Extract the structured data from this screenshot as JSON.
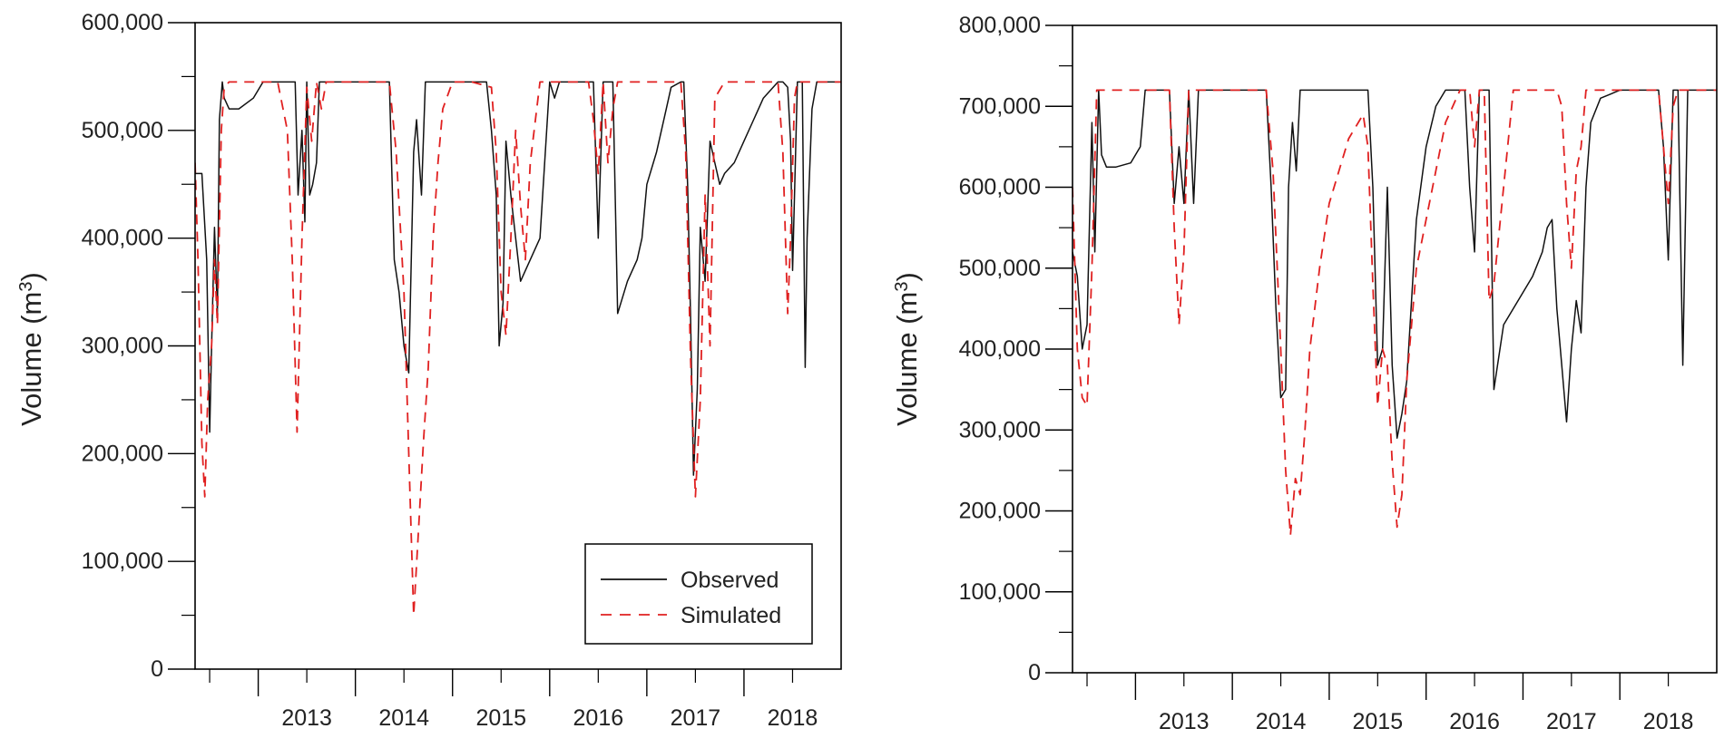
{
  "colors": {
    "observed": "#111111",
    "simulated": "#e02020",
    "axis": "#000000"
  },
  "legend": {
    "observed": "Observed",
    "simulated": "Simulated"
  },
  "chart_data": [
    {
      "type": "line",
      "title": "",
      "xlabel": "",
      "ylabel": "Volume (m3)",
      "ylabel_base": "Volume (m",
      "ylabel_sup": "3",
      "ylabel_close": ")",
      "xlim": [
        2012.35,
        2019.0
      ],
      "ylim": [
        0,
        600000
      ],
      "yticks": [
        0,
        100000,
        200000,
        300000,
        400000,
        500000,
        600000
      ],
      "ytick_labels": [
        "0",
        "100,000",
        "200,000",
        "300,000",
        "400,000",
        "500,000",
        "600,000"
      ],
      "xtick_positions": [
        2013,
        2014,
        2015,
        2016,
        2017,
        2018
      ],
      "xtick_labels": [
        "2013",
        "2014",
        "2015",
        "2016",
        "2017",
        "2018"
      ],
      "legend_position": "bottom-right",
      "series": [
        {
          "name": "Observed",
          "style": "solid",
          "x": [
            2012.35,
            2012.42,
            2012.47,
            2012.5,
            2012.52,
            2012.55,
            2012.58,
            2012.6,
            2012.63,
            2012.65,
            2012.7,
            2012.8,
            2012.95,
            2013.05,
            2013.2,
            2013.38,
            2013.41,
            2013.45,
            2013.48,
            2013.5,
            2013.53,
            2013.56,
            2013.6,
            2013.63,
            2013.67,
            2013.72,
            2013.8,
            2014.0,
            2014.2,
            2014.35,
            2014.4,
            2014.45,
            2014.5,
            2014.55,
            2014.6,
            2014.63,
            2014.68,
            2014.72,
            2014.75,
            2014.8,
            2014.85,
            2015.1,
            2015.35,
            2015.4,
            2015.45,
            2015.48,
            2015.52,
            2015.55,
            2015.6,
            2015.65,
            2015.7,
            2015.8,
            2015.9,
            2016.0,
            2016.05,
            2016.1,
            2016.2,
            2016.35,
            2016.4,
            2016.45,
            2016.5,
            2016.55,
            2016.6,
            2016.65,
            2016.7,
            2016.8,
            2016.9,
            2016.95,
            2017.0,
            2017.1,
            2017.2,
            2017.25,
            2017.35,
            2017.38,
            2017.42,
            2017.45,
            2017.48,
            2017.52,
            2017.55,
            2017.6,
            2017.65,
            2017.7,
            2017.75,
            2017.8,
            2017.9,
            2018.0,
            2018.1,
            2018.2,
            2018.35,
            2018.4,
            2018.45,
            2018.48,
            2018.5,
            2018.55,
            2018.6,
            2018.63,
            2018.65,
            2018.7,
            2018.75,
            2018.85,
            2019.0
          ],
          "y": [
            460000,
            460000,
            380000,
            220000,
            300000,
            410000,
            330000,
            510000,
            545000,
            530000,
            520000,
            520000,
            530000,
            545000,
            545000,
            545000,
            440000,
            500000,
            415000,
            545000,
            440000,
            450000,
            470000,
            545000,
            545000,
            545000,
            545000,
            545000,
            545000,
            545000,
            380000,
            350000,
            300000,
            275000,
            480000,
            510000,
            440000,
            545000,
            545000,
            545000,
            545000,
            545000,
            545000,
            500000,
            440000,
            300000,
            340000,
            490000,
            440000,
            400000,
            360000,
            380000,
            400000,
            545000,
            530000,
            545000,
            545000,
            545000,
            545000,
            545000,
            400000,
            545000,
            545000,
            545000,
            330000,
            360000,
            380000,
            400000,
            450000,
            480000,
            520000,
            540000,
            545000,
            545000,
            450000,
            330000,
            180000,
            260000,
            410000,
            360000,
            490000,
            470000,
            450000,
            460000,
            470000,
            490000,
            510000,
            530000,
            545000,
            545000,
            540000,
            490000,
            370000,
            545000,
            545000,
            280000,
            400000,
            520000,
            545000,
            545000,
            545000
          ]
        },
        {
          "name": "Simulated",
          "style": "dashed",
          "x": [
            2012.35,
            2012.38,
            2012.42,
            2012.45,
            2012.48,
            2012.52,
            2012.55,
            2012.58,
            2012.62,
            2012.65,
            2012.7,
            2012.8,
            2013.0,
            2013.2,
            2013.3,
            2013.35,
            2013.4,
            2013.45,
            2013.5,
            2013.55,
            2013.6,
            2013.65,
            2013.7,
            2013.8,
            2014.0,
            2014.2,
            2014.35,
            2014.42,
            2014.5,
            2014.55,
            2014.6,
            2014.65,
            2014.7,
            2014.75,
            2014.8,
            2014.85,
            2014.9,
            2015.0,
            2015.2,
            2015.4,
            2015.45,
            2015.5,
            2015.55,
            2015.6,
            2015.65,
            2015.7,
            2015.75,
            2015.8,
            2015.9,
            2016.1,
            2016.3,
            2016.4,
            2016.45,
            2016.5,
            2016.55,
            2016.6,
            2016.65,
            2016.7,
            2016.75,
            2016.8,
            2017.0,
            2017.2,
            2017.35,
            2017.4,
            2017.45,
            2017.5,
            2017.55,
            2017.6,
            2017.65,
            2017.7,
            2017.8,
            2018.0,
            2018.2,
            2018.35,
            2018.4,
            2018.45,
            2018.48,
            2018.52,
            2018.55,
            2018.6,
            2018.65,
            2018.7,
            2018.8,
            2019.0
          ],
          "y": [
            470000,
            380000,
            210000,
            160000,
            250000,
            300000,
            380000,
            320000,
            500000,
            540000,
            545000,
            545000,
            545000,
            545000,
            500000,
            380000,
            220000,
            400000,
            540000,
            490000,
            545000,
            520000,
            545000,
            545000,
            545000,
            545000,
            545000,
            480000,
            350000,
            200000,
            50000,
            130000,
            210000,
            280000,
            400000,
            470000,
            520000,
            545000,
            545000,
            540000,
            480000,
            350000,
            310000,
            400000,
            500000,
            430000,
            380000,
            470000,
            545000,
            545000,
            545000,
            545000,
            510000,
            460000,
            545000,
            470000,
            520000,
            545000,
            545000,
            545000,
            545000,
            545000,
            545000,
            480000,
            290000,
            160000,
            250000,
            440000,
            300000,
            530000,
            545000,
            545000,
            545000,
            545000,
            480000,
            330000,
            400000,
            530000,
            545000,
            545000,
            545000,
            545000,
            545000,
            545000
          ]
        }
      ]
    },
    {
      "type": "line",
      "title": "",
      "xlabel": "",
      "ylabel": "Volume (m3)",
      "ylabel_base": "Volume (m",
      "ylabel_sup": "3",
      "ylabel_close": ")",
      "xlim": [
        2012.35,
        2019.0
      ],
      "ylim": [
        0,
        800000
      ],
      "yticks": [
        0,
        100000,
        200000,
        300000,
        400000,
        500000,
        600000,
        700000,
        800000
      ],
      "ytick_labels": [
        "0",
        "100,000",
        "200,000",
        "300,000",
        "400,000",
        "500,000",
        "600,000",
        "700,000",
        "800,000"
      ],
      "xtick_positions": [
        2013,
        2014,
        2015,
        2016,
        2017,
        2018
      ],
      "xtick_labels": [
        "2013",
        "2014",
        "2015",
        "2016",
        "2017",
        "2018"
      ],
      "series": [
        {
          "name": "Observed",
          "style": "solid",
          "x": [
            2012.35,
            2012.4,
            2012.45,
            2012.5,
            2012.55,
            2012.58,
            2012.62,
            2012.65,
            2012.7,
            2012.8,
            2012.95,
            2013.05,
            2013.1,
            2013.2,
            2013.35,
            2013.4,
            2013.45,
            2013.5,
            2013.55,
            2013.6,
            2013.65,
            2013.7,
            2013.8,
            2014.0,
            2014.2,
            2014.35,
            2014.4,
            2014.45,
            2014.5,
            2014.55,
            2014.58,
            2014.62,
            2014.66,
            2014.7,
            2014.75,
            2014.8,
            2015.0,
            2015.2,
            2015.4,
            2015.45,
            2015.5,
            2015.55,
            2015.6,
            2015.65,
            2015.7,
            2015.75,
            2015.8,
            2015.9,
            2016.0,
            2016.1,
            2016.2,
            2016.3,
            2016.4,
            2016.45,
            2016.5,
            2016.55,
            2016.6,
            2016.65,
            2016.7,
            2016.8,
            2016.9,
            2017.0,
            2017.1,
            2017.2,
            2017.25,
            2017.3,
            2017.35,
            2017.4,
            2017.45,
            2017.5,
            2017.55,
            2017.6,
            2017.65,
            2017.7,
            2017.8,
            2017.9,
            2018.0,
            2018.2,
            2018.35,
            2018.4,
            2018.45,
            2018.5,
            2018.55,
            2018.6,
            2018.65,
            2018.7,
            2018.8,
            2019.0
          ],
          "y": [
            520000,
            490000,
            400000,
            430000,
            680000,
            520000,
            720000,
            640000,
            625000,
            625000,
            630000,
            650000,
            720000,
            720000,
            720000,
            580000,
            650000,
            580000,
            720000,
            580000,
            720000,
            720000,
            720000,
            720000,
            720000,
            720000,
            600000,
            450000,
            340000,
            350000,
            600000,
            680000,
            620000,
            720000,
            720000,
            720000,
            720000,
            720000,
            720000,
            600000,
            380000,
            400000,
            600000,
            380000,
            290000,
            320000,
            360000,
            560000,
            650000,
            700000,
            720000,
            720000,
            720000,
            600000,
            520000,
            720000,
            720000,
            720000,
            350000,
            430000,
            450000,
            470000,
            490000,
            520000,
            550000,
            560000,
            450000,
            380000,
            310000,
            400000,
            460000,
            420000,
            600000,
            680000,
            710000,
            715000,
            720000,
            720000,
            720000,
            720000,
            650000,
            510000,
            720000,
            720000,
            380000,
            720000,
            720000,
            720000
          ]
        },
        {
          "name": "Simulated",
          "style": "dashed",
          "x": [
            2012.35,
            2012.4,
            2012.45,
            2012.5,
            2012.55,
            2012.6,
            2012.65,
            2012.7,
            2012.8,
            2013.0,
            2013.2,
            2013.35,
            2013.4,
            2013.45,
            2013.5,
            2013.55,
            2013.6,
            2013.7,
            2013.8,
            2014.0,
            2014.2,
            2014.35,
            2014.42,
            2014.5,
            2014.55,
            2014.6,
            2014.65,
            2014.7,
            2014.75,
            2014.8,
            2014.9,
            2015.0,
            2015.1,
            2015.2,
            2015.35,
            2015.4,
            2015.45,
            2015.5,
            2015.55,
            2015.6,
            2015.65,
            2015.7,
            2015.75,
            2015.8,
            2015.9,
            2016.0,
            2016.1,
            2016.2,
            2016.35,
            2016.4,
            2016.45,
            2016.5,
            2016.55,
            2016.6,
            2016.65,
            2016.7,
            2016.8,
            2016.9,
            2017.0,
            2017.2,
            2017.35,
            2017.4,
            2017.45,
            2017.5,
            2017.55,
            2017.6,
            2017.65,
            2017.7,
            2017.8,
            2018.0,
            2018.2,
            2018.35,
            2018.4,
            2018.45,
            2018.5,
            2018.55,
            2018.6,
            2018.7,
            2019.0
          ],
          "y": [
            600000,
            400000,
            340000,
            330000,
            500000,
            720000,
            720000,
            720000,
            720000,
            720000,
            720000,
            720000,
            550000,
            430000,
            520000,
            720000,
            720000,
            720000,
            720000,
            720000,
            720000,
            720000,
            620000,
            400000,
            250000,
            170000,
            240000,
            220000,
            300000,
            400000,
            500000,
            580000,
            620000,
            660000,
            690000,
            650000,
            480000,
            330000,
            400000,
            380000,
            260000,
            180000,
            220000,
            360000,
            500000,
            560000,
            620000,
            680000,
            720000,
            720000,
            720000,
            650000,
            720000,
            720000,
            460000,
            480000,
            600000,
            720000,
            720000,
            720000,
            720000,
            700000,
            580000,
            500000,
            620000,
            650000,
            720000,
            720000,
            720000,
            720000,
            720000,
            720000,
            720000,
            650000,
            580000,
            700000,
            720000,
            720000,
            720000
          ]
        }
      ]
    }
  ]
}
